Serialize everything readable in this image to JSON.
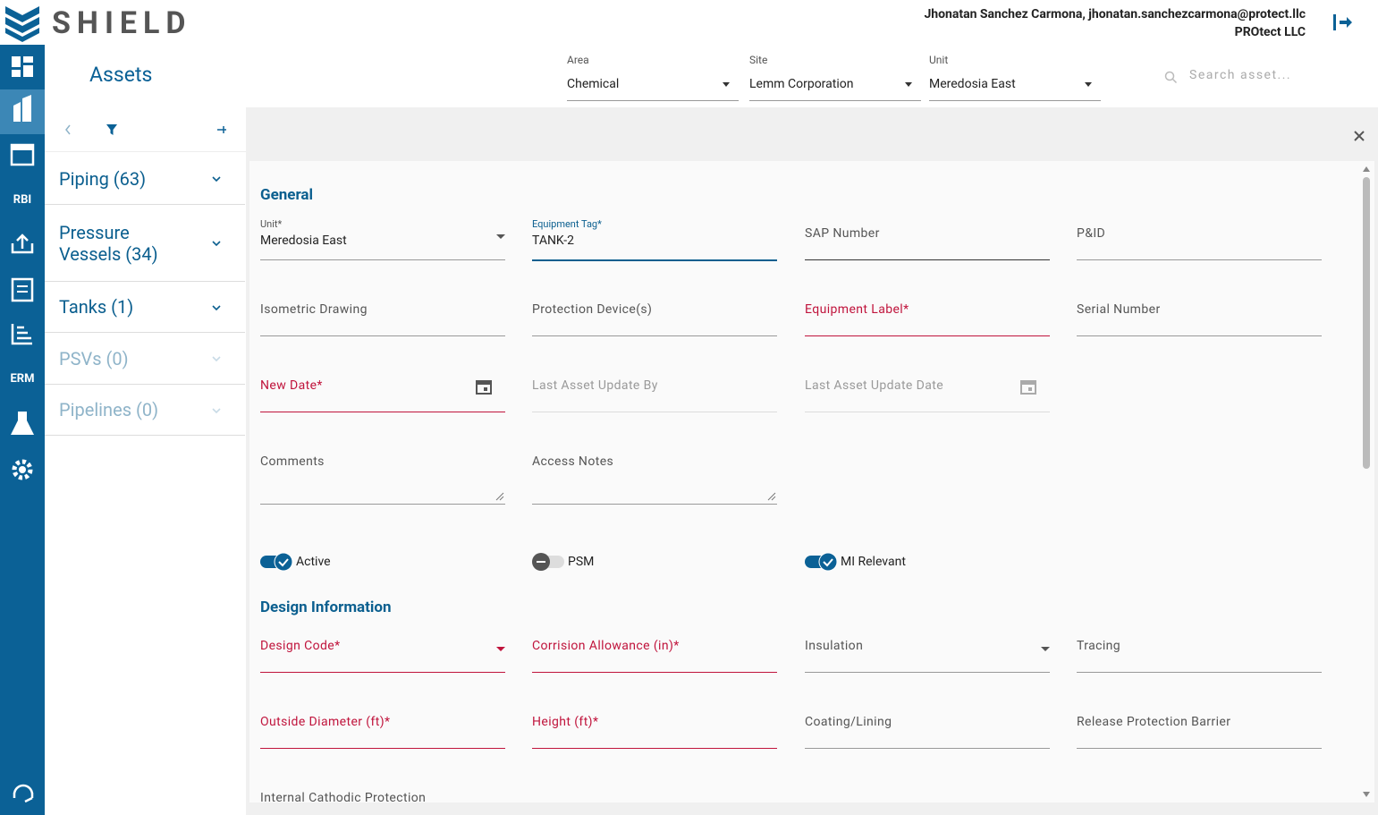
{
  "header": {
    "brand": "SHIELD",
    "user": "Jhonatan Sanchez Carmona, jhonatan.sanchezcarmona@protect.llc",
    "company": "PROtect LLC"
  },
  "nav": {
    "labels": [
      "RBI",
      "ERM"
    ]
  },
  "page": {
    "title": "Assets",
    "search_placeholder": "Search asset...",
    "filters": [
      {
        "label": "Area",
        "value": "Chemical"
      },
      {
        "label": "Site",
        "value": "Lemm Corporation"
      },
      {
        "label": "Unit",
        "value": "Meredosia East"
      }
    ]
  },
  "categories": [
    {
      "name": "Piping (63)",
      "active": true
    },
    {
      "name": "Pressure Vessels (34)",
      "active": true
    },
    {
      "name": "Tanks (1)",
      "active": true
    },
    {
      "name": "PSVs (0)",
      "active": false
    },
    {
      "name": "Pipelines (0)",
      "active": false
    }
  ],
  "form": {
    "general": {
      "title": "General",
      "rows": [
        [
          {
            "label": "Unit*",
            "value": "Meredosia East",
            "kind": "select",
            "state": "filled"
          },
          {
            "label": "Equipment Tag*",
            "value": "TANK-2",
            "kind": "text",
            "state": "focused"
          },
          {
            "label": "SAP Number",
            "kind": "text",
            "state": "touched"
          },
          {
            "label": "P&ID",
            "kind": "text",
            "state": "normal"
          }
        ],
        [
          {
            "label": "Isometric Drawing",
            "kind": "text",
            "state": "normal"
          },
          {
            "label": "Protection Device(s)",
            "kind": "text",
            "state": "normal"
          },
          {
            "label": "Equipment Label*",
            "kind": "text",
            "state": "error"
          },
          {
            "label": "Serial Number",
            "kind": "text",
            "state": "normal"
          }
        ],
        [
          {
            "label": "New Date*",
            "kind": "date",
            "state": "error"
          },
          {
            "label": "Last Asset Update By",
            "kind": "text",
            "state": "disabled"
          },
          {
            "label": "Last Asset Update Date",
            "kind": "date",
            "state": "disabled"
          }
        ],
        [
          {
            "label": "Comments",
            "kind": "textarea",
            "state": "normal"
          },
          {
            "label": "Access Notes",
            "kind": "textarea",
            "state": "normal"
          }
        ]
      ],
      "toggles": [
        {
          "label": "Active",
          "on": true
        },
        {
          "label": "PSM",
          "on": false
        },
        {
          "label": "MI Relevant",
          "on": true
        }
      ]
    },
    "design": {
      "title": "Design Information",
      "rows": [
        [
          {
            "label": "Design Code*",
            "kind": "select",
            "state": "error"
          },
          {
            "label": "Corrision Allowance (in)*",
            "kind": "text",
            "state": "error"
          },
          {
            "label": "Insulation",
            "kind": "select",
            "state": "normal"
          },
          {
            "label": "Tracing",
            "kind": "text",
            "state": "normal"
          }
        ],
        [
          {
            "label": "Outside Diameter (ft)*",
            "kind": "text",
            "state": "error"
          },
          {
            "label": "Height (ft)*",
            "kind": "text",
            "state": "error"
          },
          {
            "label": "Coating/Lining",
            "kind": "text",
            "state": "normal"
          },
          {
            "label": "Release Protection Barrier",
            "kind": "text",
            "state": "normal"
          }
        ],
        [
          {
            "label": "Internal Cathodic Protection",
            "kind": "text",
            "state": "normal"
          }
        ]
      ]
    }
  }
}
